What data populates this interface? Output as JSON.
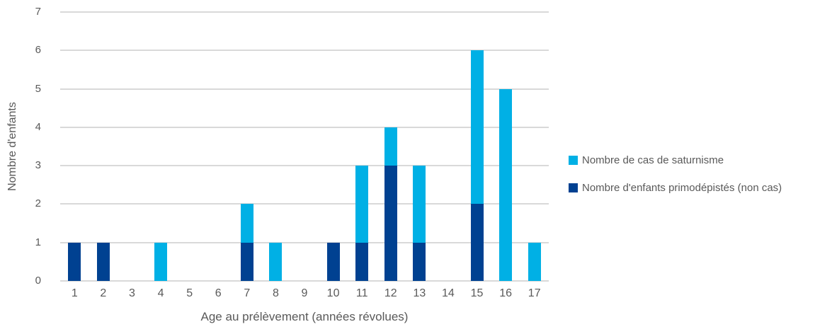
{
  "chart_data": {
    "type": "bar",
    "stacked": true,
    "title": "",
    "xlabel": "Age au prélèvement (années révolues)",
    "ylabel": "Nombre d'enfants",
    "categories": [
      "1",
      "2",
      "3",
      "4",
      "5",
      "6",
      "7",
      "8",
      "9",
      "10",
      "11",
      "12",
      "13",
      "14",
      "15",
      "16",
      "17"
    ],
    "series": [
      {
        "name": "Nombre d'enfants primodépistés (non cas)",
        "color": "#004191",
        "stack_order": "bottom",
        "values": [
          1,
          1,
          0,
          0,
          0,
          0,
          1,
          0,
          0,
          1,
          1,
          3,
          1,
          0,
          2,
          0,
          0
        ]
      },
      {
        "name": "Nombre de cas de saturnisme",
        "color": "#00b0e5",
        "stack_order": "top",
        "values": [
          0,
          0,
          0,
          1,
          0,
          0,
          1,
          1,
          0,
          0,
          2,
          1,
          2,
          0,
          4,
          5,
          1
        ]
      }
    ],
    "ylim": [
      0,
      7
    ],
    "yticks": [
      0,
      1,
      2,
      3,
      4,
      5,
      6,
      7
    ],
    "grid": true,
    "gridline_color": "#d9d9d9",
    "text_color": "#595959",
    "legend_position": "right"
  },
  "legend": {
    "items": [
      {
        "label": "Nombre de cas de saturnisme",
        "color": "#00b0e5"
      },
      {
        "label": "Nombre d'enfants primodépistés (non cas)",
        "color": "#004191"
      }
    ]
  }
}
